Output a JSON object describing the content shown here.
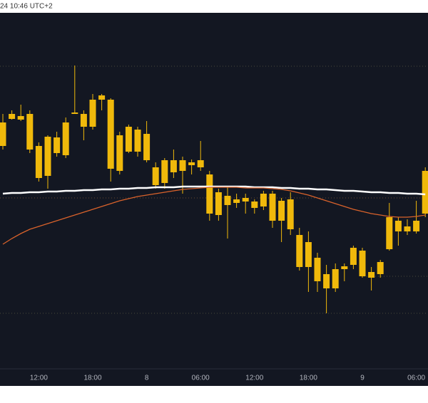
{
  "chart_data": {
    "type": "candlestick",
    "timestamp": "24 10:46 UTC+2",
    "categories": [
      null,
      null,
      null,
      null,
      "12:00",
      null,
      null,
      null,
      null,
      null,
      "18:00",
      null,
      null,
      null,
      null,
      null,
      "8",
      null,
      null,
      null,
      null,
      null,
      "06:00",
      null,
      null,
      null,
      null,
      null,
      "12:00",
      null,
      null,
      null,
      null,
      null,
      "18:00",
      null,
      null,
      null,
      null,
      null,
      "9",
      null,
      null,
      null,
      null,
      null,
      "06:00",
      null
    ],
    "open": [
      335,
      373,
      377,
      380,
      335,
      293,
      347,
      322,
      380,
      380,
      362,
      400,
      400,
      300,
      362,
      327,
      352,
      305,
      283,
      315,
      300,
      312,
      305,
      295,
      238,
      265,
      255,
      262,
      257,
      250,
      268,
      230,
      260,
      210,
      165,
      178,
      155,
      135,
      162,
      168,
      188,
      150,
      155,
      190,
      230,
      215,
      215,
      240
    ],
    "high": [
      380,
      385,
      393,
      385,
      340,
      350,
      355,
      375,
      448,
      385,
      408,
      408,
      402,
      355,
      365,
      362,
      370,
      312,
      318,
      330,
      320,
      316,
      342,
      300,
      275,
      278,
      268,
      268,
      260,
      272,
      272,
      262,
      270,
      220,
      215,
      185,
      168,
      170,
      170,
      195,
      192,
      165,
      175,
      255,
      235,
      232,
      258,
      305
    ],
    "low": [
      330,
      372,
      370,
      325,
      285,
      275,
      320,
      318,
      380,
      343,
      358,
      385,
      285,
      295,
      325,
      320,
      312,
      275,
      275,
      290,
      268,
      295,
      300,
      230,
      230,
      205,
      248,
      240,
      240,
      245,
      220,
      200,
      210,
      160,
      130,
      130,
      100,
      130,
      145,
      162,
      150,
      132,
      150,
      188,
      195,
      210,
      212,
      235
    ],
    "close": [
      368,
      380,
      372,
      330,
      290,
      348,
      325,
      368,
      382,
      362,
      400,
      406,
      303,
      350,
      327,
      358,
      315,
      280,
      315,
      298,
      315,
      308,
      315,
      240,
      270,
      252,
      260,
      257,
      248,
      268,
      230,
      258,
      218,
      165,
      200,
      145,
      135,
      162,
      166,
      192,
      152,
      158,
      172,
      235,
      215,
      222,
      230,
      300
    ],
    "candle_color": "#f0b90b",
    "lines": [
      {
        "color": "#ffffff",
        "values": [
          268,
          269,
          269,
          270,
          270,
          271,
          271,
          272,
          272,
          273,
          273,
          274,
          274,
          275,
          275,
          276,
          276,
          277,
          277,
          277,
          278,
          278,
          278,
          278,
          278,
          278,
          278,
          278,
          277,
          277,
          277,
          276,
          276,
          275,
          275,
          274,
          274,
          273,
          272,
          272,
          271,
          270,
          270,
          269,
          269,
          268,
          268,
          267
        ]
      },
      {
        "color": "#d9622b",
        "values": [
          197,
          205,
          212,
          218,
          222,
          226,
          230,
          234,
          238,
          242,
          246,
          250,
          254,
          258,
          261,
          264,
          266,
          268,
          270,
          272,
          274,
          275,
          276,
          277,
          277,
          277,
          277,
          276,
          276,
          276,
          275,
          274,
          272,
          269,
          266,
          262,
          258,
          254,
          250,
          246,
          243,
          240,
          238,
          236,
          235,
          235,
          236,
          238
        ]
      }
    ],
    "ylim": [
      0,
      520
    ]
  }
}
